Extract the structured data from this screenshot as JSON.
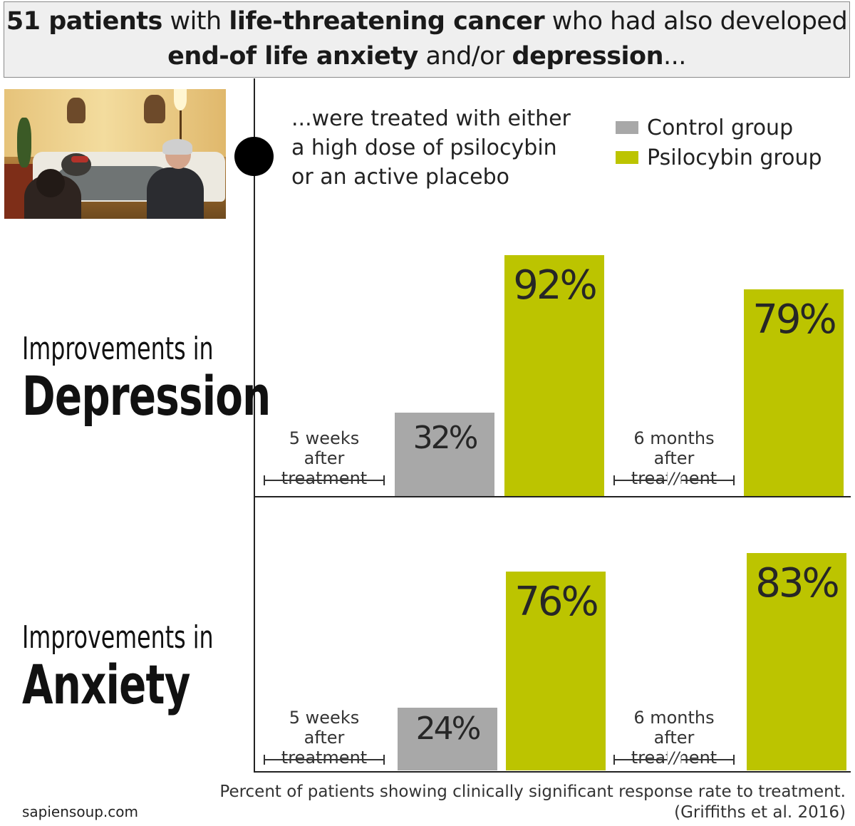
{
  "header": {
    "segments": [
      {
        "text": "51 patients",
        "bold": true
      },
      {
        "text": " with ",
        "bold": false
      },
      {
        "text": "life-threatening cancer",
        "bold": true
      },
      {
        "text": " who had also developed ",
        "bold": false
      },
      {
        "text": "end-of life anxiety",
        "bold": true
      },
      {
        "text": " and/or ",
        "bold": false
      },
      {
        "text": "depression",
        "bold": true
      },
      {
        "text": "...",
        "bold": false
      }
    ]
  },
  "intro": {
    "line1": "...were treated with either",
    "line2": "a high dose of psilocybin",
    "line3": "or an active placebo"
  },
  "legend": {
    "items": [
      {
        "label": "Control group",
        "color": "#a8a8a8"
      },
      {
        "label": "Psilocybin group",
        "color": "#bcc400"
      }
    ]
  },
  "colors": {
    "control": "#a8a8a8",
    "psilocybin": "#bcc400"
  },
  "sections": {
    "depression": {
      "small": "Improvements in",
      "big": "Depression"
    },
    "anxiety": {
      "small": "Improvements in",
      "big": "Anxiety"
    }
  },
  "time_labels": {
    "t1_line1": "5 weeks",
    "t1_line2": "after treatment",
    "t2_line1": "6 months",
    "t2_line2": "after treatment",
    "break_mark": "//"
  },
  "chart_data": [
    {
      "type": "bar",
      "title": "Improvements in Depression",
      "categories": [
        "5 weeks after treatment",
        "6 months after treatment"
      ],
      "series": [
        {
          "name": "Control group",
          "values": [
            32,
            null
          ]
        },
        {
          "name": "Psilocybin group",
          "values": [
            92,
            79
          ]
        }
      ],
      "labels": {
        "control_5w": "32%",
        "psilo_5w": "92%",
        "psilo_6m": "79%"
      },
      "unit": "%",
      "ylim": [
        0,
        100
      ]
    },
    {
      "type": "bar",
      "title": "Improvements in Anxiety",
      "categories": [
        "5 weeks after treatment",
        "6 months after treatment"
      ],
      "series": [
        {
          "name": "Control group",
          "values": [
            24,
            null
          ]
        },
        {
          "name": "Psilocybin group",
          "values": [
            76,
            83
          ]
        }
      ],
      "labels": {
        "control_5w": "24%",
        "psilo_5w": "76%",
        "psilo_6m": "83%"
      },
      "unit": "%",
      "ylim": [
        0,
        100
      ]
    }
  ],
  "footnote": {
    "line1": "Percent of patients showing clinically significant response rate to treatment.",
    "line2": "(Griffiths et al. 2016)"
  },
  "credit": "sapiensoup.com"
}
